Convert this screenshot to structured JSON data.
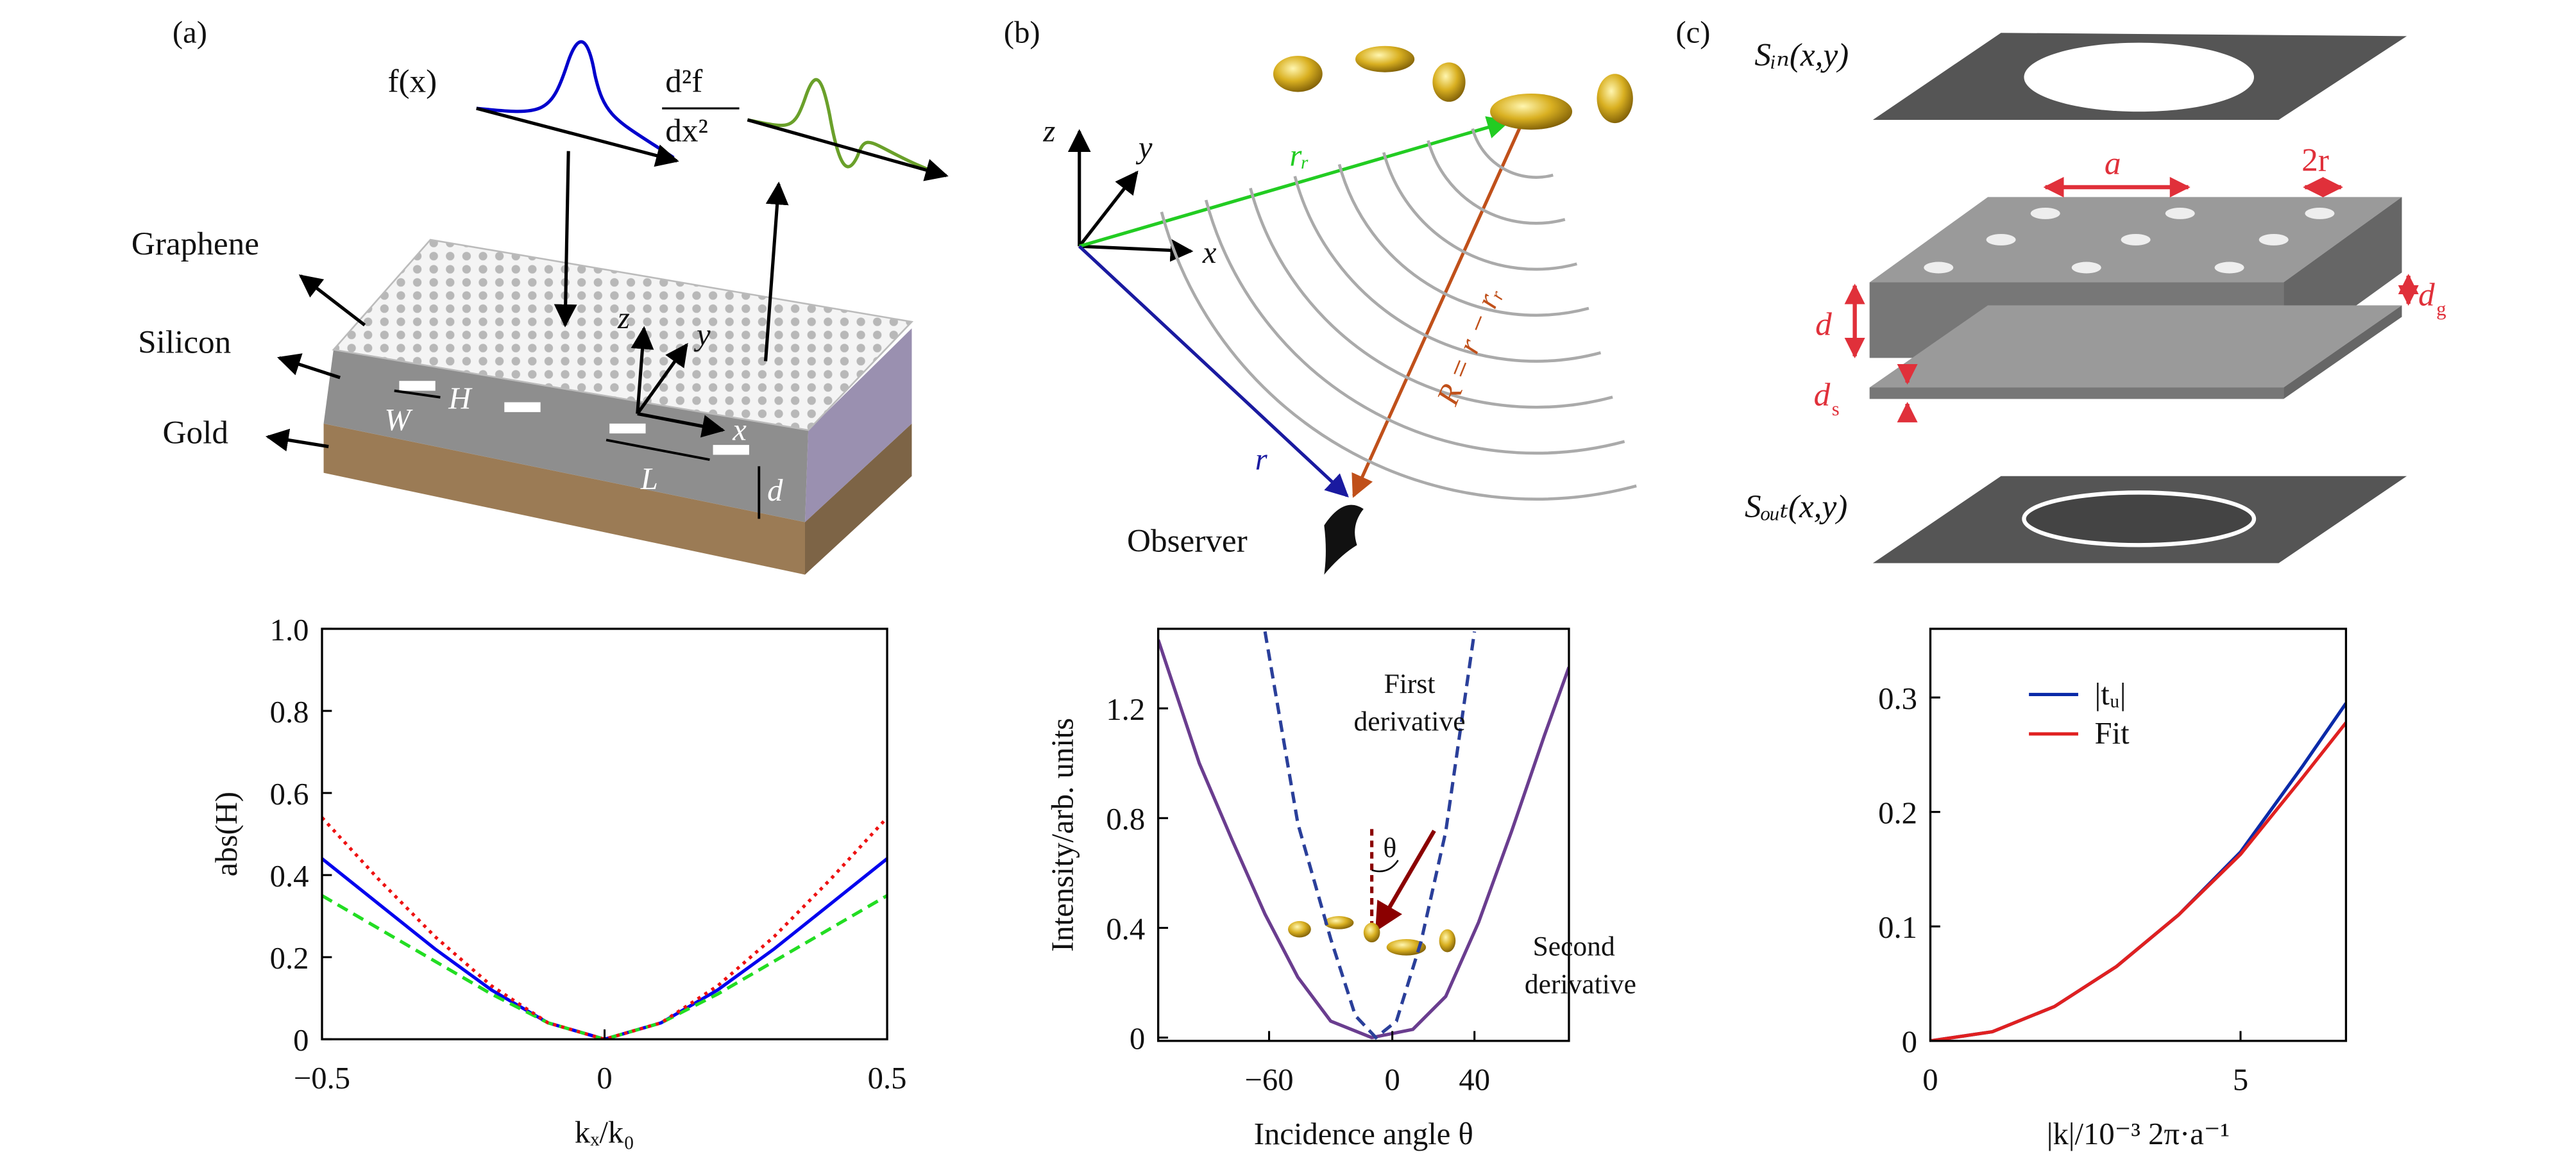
{
  "panel_labels": [
    "(a)",
    "(b)",
    "(c)"
  ],
  "illustration_a": {
    "input": "f(x)",
    "output_numerator": "d²f",
    "output_denominator": "dx²",
    "layers": [
      "Graphene",
      "Silicon",
      "Gold"
    ],
    "dims": [
      "W",
      "H",
      "L",
      "d"
    ],
    "axes": [
      "z",
      "y",
      "x"
    ]
  },
  "illustration_b": {
    "axes": [
      "z",
      "y",
      "x"
    ],
    "vectors": [
      "rᵣ",
      "r",
      "R = r − rᵣ"
    ],
    "observer": "Observer"
  },
  "illustration_c": {
    "input": "Sᵢₙ(x,y)",
    "output": "Sₒᵤₜ(x,y)",
    "dims": {
      "a": "a",
      "two_r": "2r",
      "d": "d",
      "dg": [
        "d",
        "g"
      ],
      "ds": [
        "d",
        "s"
      ]
    }
  },
  "chart_data": [
    {
      "type": "line",
      "xlabel": "kₓ/k₀",
      "ylabel": "abs(H)",
      "x": [
        -0.5,
        -0.4,
        -0.3,
        -0.2,
        -0.1,
        0,
        0.1,
        0.2,
        0.3,
        0.4,
        0.5
      ],
      "xlim": [
        -0.5,
        0.5
      ],
      "ylim": [
        0,
        1
      ],
      "xticks": [
        {
          "value": -0.5,
          "label": "−0.5"
        },
        0,
        0.5
      ],
      "yticks": [
        0,
        0.2,
        0.4,
        0.6,
        0.8,
        {
          "value": 1,
          "label": "1.0"
        }
      ],
      "series": [
        {
          "color": "#0000ee",
          "linestyle": "solid",
          "values": [
            0.44,
            0.33,
            0.22,
            0.12,
            0.04,
            0,
            0.04,
            0.12,
            0.22,
            0.33,
            0.44
          ]
        },
        {
          "color": "#22dd22",
          "linestyle": "dashed",
          "values": [
            0.35,
            0.27,
            0.19,
            0.11,
            0.04,
            0,
            0.04,
            0.11,
            0.19,
            0.27,
            0.35
          ]
        },
        {
          "color": "#ee1111",
          "linestyle": "dotted",
          "values": [
            0.54,
            0.39,
            0.25,
            0.13,
            0.04,
            0,
            0.04,
            0.13,
            0.25,
            0.39,
            0.54
          ]
        }
      ]
    },
    {
      "type": "line",
      "xlabel": "Incidence angle θ",
      "ylabel": "Intensity/arb. units",
      "xlim": [
        -114,
        86
      ],
      "ylim": [
        -0.012,
        1.49
      ],
      "xticks": [
        {
          "value": -60,
          "label": "−60"
        },
        0,
        40
      ],
      "yticks": [
        0,
        0.4,
        0.8,
        1.2
      ],
      "annotations": [
        "First",
        "derivative",
        "Second",
        "derivative",
        "θ"
      ],
      "series": [
        {
          "color": "#6a3d8f",
          "linestyle": "solid",
          "x": [
            -114,
            -94,
            -78,
            -62,
            -46,
            -30,
            -10,
            10,
            26,
            42,
            58,
            74,
            86
          ],
          "values": [
            1.45,
            1.0,
            0.72,
            0.45,
            0.22,
            0.06,
            0,
            0.03,
            0.15,
            0.42,
            0.75,
            1.1,
            1.35
          ]
        },
        {
          "color": "#2a3f9a",
          "linestyle": "dashed",
          "x": [
            -62,
            -46,
            -30,
            -18,
            -8,
            2,
            14,
            26,
            40
          ],
          "values": [
            1.48,
            0.78,
            0.36,
            0.08,
            0,
            0.06,
            0.35,
            0.75,
            1.48
          ]
        }
      ]
    },
    {
      "type": "line",
      "xlabel": "|k|/10⁻³ 2π·a⁻¹",
      "legend": "upper left",
      "x": [
        0,
        1,
        2,
        3,
        4,
        5,
        6,
        6.7
      ],
      "xlim": [
        0,
        6.7
      ],
      "ylim": [
        0,
        0.36
      ],
      "xticks": [
        0,
        5
      ],
      "yticks": [
        0,
        0.1,
        0.2,
        0.3
      ],
      "series": [
        {
          "name": "|tᵤ|",
          "color": "#0a2aa8",
          "linestyle": "solid",
          "values": [
            0,
            0.008,
            0.03,
            0.065,
            0.11,
            0.165,
            0.24,
            0.295
          ]
        },
        {
          "name": "Fit",
          "color": "#e02020",
          "linestyle": "solid",
          "values": [
            0,
            0.008,
            0.03,
            0.065,
            0.11,
            0.163,
            0.23,
            0.278
          ]
        }
      ]
    }
  ]
}
